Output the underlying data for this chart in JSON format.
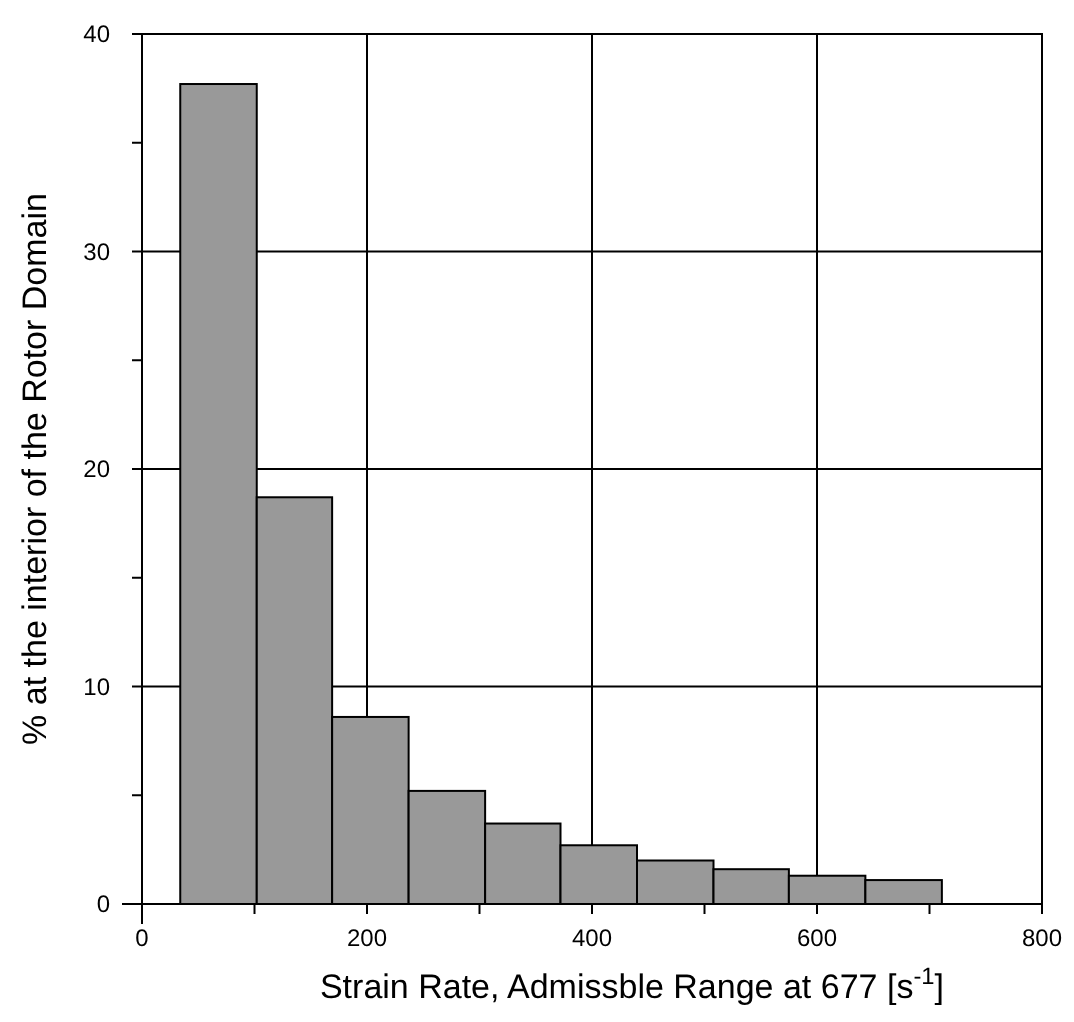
{
  "chart_data": {
    "type": "histogram",
    "xlabel": "Strain Rate, Admissble Range at 677 [s$^{-1}$]",
    "ylabel": "% at the interior of the Rotor Domain",
    "bins": [
      34,
      102,
      169,
      237,
      305,
      372,
      440,
      508,
      575,
      643,
      711
    ],
    "values": [
      37.7,
      18.7,
      8.6,
      5.2,
      3.7,
      2.7,
      2.0,
      1.6,
      1.3,
      1.1
    ],
    "color": "#999999",
    "xlim": [
      0,
      800
    ],
    "ylim": [
      0,
      40
    ],
    "xticks": [
      0,
      {
        "value": 100,
        "label": null
      },
      200,
      {
        "value": 300,
        "label": null
      },
      400,
      {
        "value": 500,
        "label": null
      },
      600,
      {
        "value": 700,
        "label": null
      },
      800
    ],
    "yticks": [
      0,
      {
        "value": 5,
        "label": null
      },
      10,
      {
        "value": 15,
        "label": null
      },
      20,
      {
        "value": 25,
        "label": null
      },
      30,
      {
        "value": 35,
        "label": null
      },
      40
    ],
    "grid": true
  }
}
